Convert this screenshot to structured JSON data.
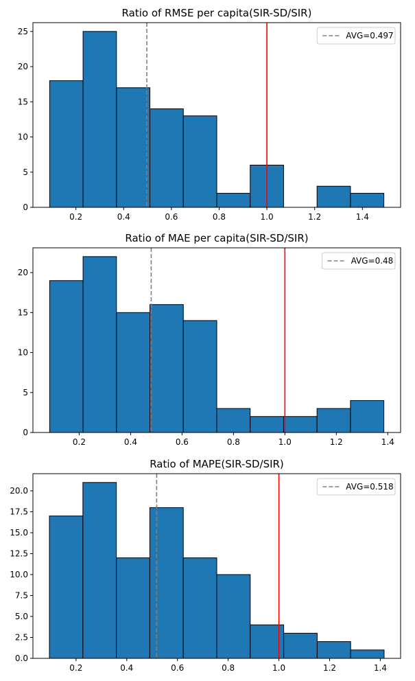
{
  "chart_data": [
    {
      "type": "histogram",
      "title": "Ratio of RMSE per capita(SIR-SD/SIR)",
      "xlim": [
        0.02,
        1.56
      ],
      "ylim": [
        0,
        26.25
      ],
      "xticks": [
        0.2,
        0.4,
        0.6,
        0.8,
        1.0,
        1.2,
        1.4
      ],
      "xtick_labels": [
        "0.2",
        "0.4",
        "0.6",
        "0.8",
        "1.0",
        "1.2",
        "1.4"
      ],
      "yticks": [
        0,
        5,
        10,
        15,
        20,
        25
      ],
      "ytick_labels": [
        "0",
        "5",
        "10",
        "15",
        "20",
        "25"
      ],
      "bin_edges": [
        0.09,
        0.23,
        0.37,
        0.51,
        0.65,
        0.79,
        0.93,
        1.07,
        1.21,
        1.35,
        1.49
      ],
      "counts": [
        18,
        25,
        17,
        14,
        13,
        2,
        6,
        0,
        3,
        2
      ],
      "avg": 0.497,
      "avg_label": "AVG=0.497",
      "ref_line": 1.0,
      "bar_color": "#1f77b4",
      "avg_color": "#808080",
      "ref_color": "#ff0000",
      "legend_position": "upper right",
      "grid": false
    },
    {
      "type": "histogram",
      "title": "Ratio of MAE per capita(SIR-SD/SIR)",
      "xlim": [
        0.02,
        1.45
      ],
      "ylim": [
        0,
        23.1
      ],
      "xticks": [
        0.2,
        0.4,
        0.6,
        0.8,
        1.0,
        1.2,
        1.4
      ],
      "xtick_labels": [
        "0.2",
        "0.4",
        "0.6",
        "0.8",
        "1.0",
        "1.2",
        "1.4"
      ],
      "yticks": [
        0,
        5,
        10,
        15,
        20
      ],
      "ytick_labels": [
        "0",
        "5",
        "10",
        "15",
        "20"
      ],
      "bin_edges": [
        0.085,
        0.215,
        0.345,
        0.475,
        0.605,
        0.735,
        0.865,
        0.995,
        1.125,
        1.255,
        1.385
      ],
      "counts": [
        19,
        22,
        15,
        16,
        14,
        3,
        2,
        2,
        3,
        4
      ],
      "avg": 0.48,
      "avg_label": "AVG=0.48",
      "ref_line": 1.0,
      "bar_color": "#1f77b4",
      "avg_color": "#808080",
      "ref_color": "#ff0000",
      "legend_position": "upper right",
      "grid": false
    },
    {
      "type": "histogram",
      "title": "Ratio of MAPE(SIR-SD/SIR)",
      "xlim": [
        0.03,
        1.48
      ],
      "ylim": [
        0,
        22.05
      ],
      "xticks": [
        0.2,
        0.4,
        0.6,
        0.8,
        1.0,
        1.2,
        1.4
      ],
      "xtick_labels": [
        "0.2",
        "0.4",
        "0.6",
        "0.8",
        "1.0",
        "1.2",
        "1.4"
      ],
      "yticks": [
        0,
        2.5,
        5.0,
        7.5,
        10.0,
        12.5,
        15.0,
        17.5,
        20.0
      ],
      "ytick_labels": [
        "0.0",
        "2.5",
        "5.0",
        "7.5",
        "10.0",
        "12.5",
        "15.0",
        "17.5",
        "20.0"
      ],
      "bin_edges": [
        0.095,
        0.227,
        0.359,
        0.491,
        0.623,
        0.755,
        0.887,
        1.019,
        1.151,
        1.283,
        1.415
      ],
      "counts": [
        17,
        21,
        12,
        18,
        12,
        10,
        4,
        3,
        2,
        1
      ],
      "avg": 0.518,
      "avg_label": "AVG=0.518",
      "ref_line": 1.0,
      "bar_color": "#1f77b4",
      "avg_color": "#808080",
      "ref_color": "#ff0000",
      "legend_position": "upper right",
      "grid": false
    }
  ]
}
